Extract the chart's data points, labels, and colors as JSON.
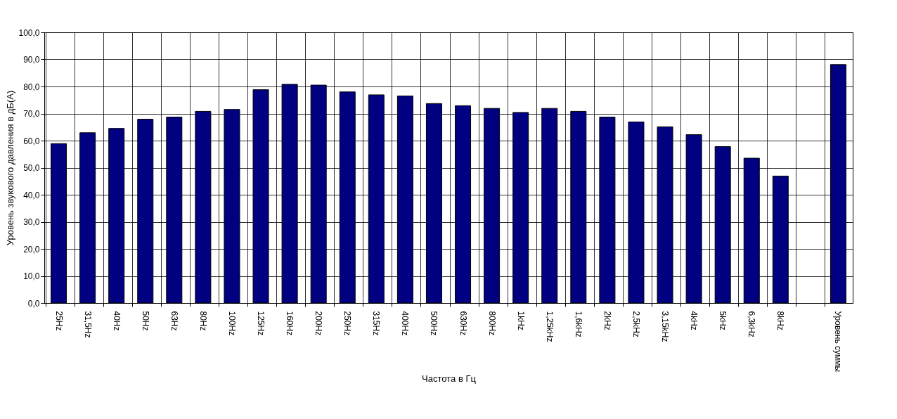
{
  "chart_data": {
    "type": "bar",
    "xlabel": "Частота в Гц",
    "ylabel": "Уровень звукового давления в дБ(А)",
    "categories": [
      "25Hz",
      "31,5Hz",
      "40Hz",
      "50Hz",
      "63Hz",
      "80Hz",
      "100Hz",
      "125Hz",
      "160Hz",
      "200Hz",
      "250Hz",
      "315Hz",
      "400Hz",
      "500Hz",
      "630Hz",
      "800Hz",
      "1kHz",
      "1,25kHz",
      "1,6kHz",
      "2kHz",
      "2,5kHz",
      "3,15kHz",
      "4kHz",
      "5kHz",
      "6,3kHz",
      "8kHz",
      null,
      "Уровень суммы"
    ],
    "values": [
      58.9,
      62.9,
      64.5,
      67.9,
      68.7,
      70.8,
      71.5,
      78.8,
      80.8,
      80.5,
      78.0,
      76.9,
      76.5,
      73.7,
      72.9,
      71.9,
      70.4,
      71.9,
      70.8,
      68.7,
      66.9,
      65.1,
      62.2,
      57.8,
      53.5,
      46.9,
      null,
      88.1
    ],
    "color": "#000080",
    "ylim": [
      0,
      100
    ],
    "yticks": [
      {
        "value": 0,
        "label": "0,0"
      },
      {
        "value": 10,
        "label": "10,0"
      },
      {
        "value": 20,
        "label": "20,0"
      },
      {
        "value": 30,
        "label": "30,0"
      },
      {
        "value": 40,
        "label": "40,0"
      },
      {
        "value": 50,
        "label": "50,0"
      },
      {
        "value": 60,
        "label": "60,0"
      },
      {
        "value": 70,
        "label": "70,0"
      },
      {
        "value": 80,
        "label": "80,0"
      },
      {
        "value": 90,
        "label": "90,0"
      },
      {
        "value": 100,
        "label": "100,0"
      }
    ],
    "grid": true
  }
}
